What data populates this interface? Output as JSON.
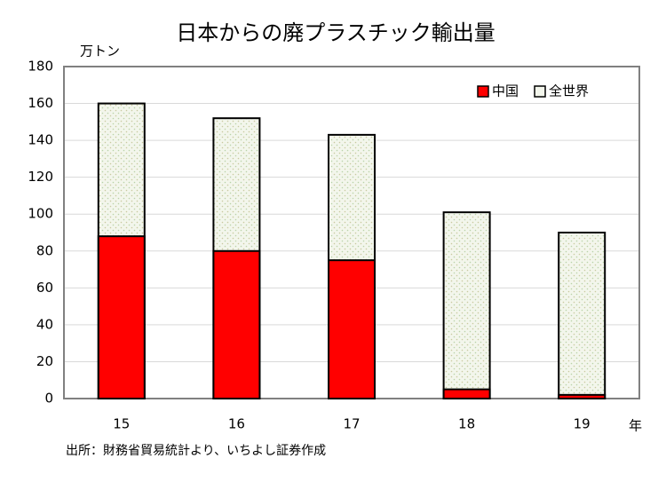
{
  "chart_data": {
    "type": "bar",
    "title": "日本からの廃プラスチック輸出量",
    "y_label": "万トン",
    "x_label": "年",
    "source": "出所：財務省貿易統計より、いちよし証券作成",
    "categories": [
      "15",
      "16",
      "17",
      "18",
      "19"
    ],
    "series": [
      {
        "name": "中国",
        "color": "#ff0000",
        "values": [
          88,
          80,
          75,
          5,
          2
        ]
      },
      {
        "name": "全世界",
        "color": "#f3f6ec",
        "values": [
          160,
          152,
          143,
          101,
          90
        ]
      }
    ],
    "ylim": [
      0,
      180
    ],
    "yticks": [
      0,
      20,
      40,
      60,
      80,
      100,
      120,
      140,
      160,
      180
    ],
    "grid": true,
    "legend": "upper right"
  }
}
